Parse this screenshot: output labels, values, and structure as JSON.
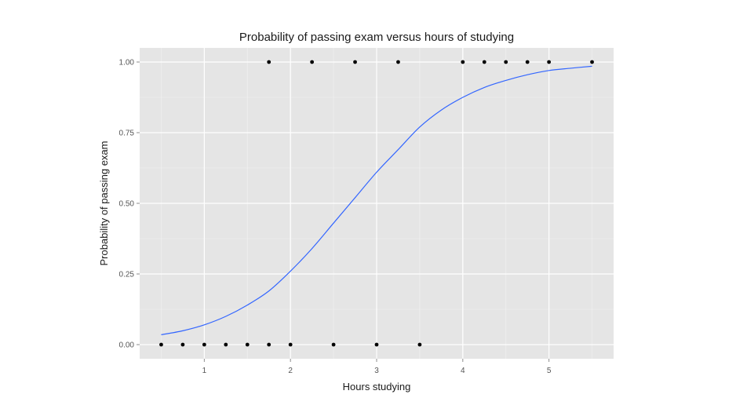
{
  "chart_data": {
    "type": "scatter",
    "title": "Probability of passing exam versus hours of studying",
    "xlabel": "Hours studying",
    "ylabel": "Probability of passing exam",
    "xlim": [
      0.25,
      5.75
    ],
    "ylim": [
      -0.05,
      1.05
    ],
    "x_ticks": [
      1,
      2,
      3,
      4,
      5
    ],
    "x_tick_labels": [
      "1",
      "2",
      "3",
      "4",
      "5"
    ],
    "y_ticks": [
      0,
      0.25,
      0.5,
      0.75,
      1
    ],
    "y_tick_labels": [
      "0.00",
      "0.25",
      "0.50",
      "0.75",
      "1.00"
    ],
    "grid": true,
    "series": [
      {
        "kind": "points",
        "x": [
          0.5,
          0.75,
          1.0,
          1.25,
          1.5,
          1.75,
          1.75,
          2.0,
          2.25,
          2.5,
          2.75,
          3.0,
          3.25,
          3.5,
          4.0,
          4.25,
          4.5,
          4.75,
          5.0,
          5.5
        ],
        "y": [
          0,
          0,
          0,
          0,
          0,
          0,
          1,
          0,
          1,
          0,
          1,
          0,
          1,
          0,
          1,
          1,
          1,
          1,
          1,
          1
        ]
      },
      {
        "kind": "line",
        "x": [
          0.5,
          0.75,
          1.0,
          1.25,
          1.5,
          1.75,
          2.0,
          2.25,
          2.5,
          2.75,
          3.0,
          3.25,
          3.5,
          3.75,
          4.0,
          4.25,
          4.5,
          4.75,
          5.0,
          5.25,
          5.5
        ],
        "y": [
          0.035,
          0.049,
          0.07,
          0.1,
          0.14,
          0.19,
          0.26,
          0.34,
          0.43,
          0.52,
          0.61,
          0.69,
          0.77,
          0.83,
          0.875,
          0.91,
          0.935,
          0.955,
          0.97,
          0.978,
          0.985
        ]
      }
    ],
    "colors": {
      "panel_bg": "#e5e5e5",
      "grid_major": "#ffffff",
      "grid_minor": "#f2f2f2",
      "curve": "#3366ff",
      "points": "#000000"
    }
  }
}
